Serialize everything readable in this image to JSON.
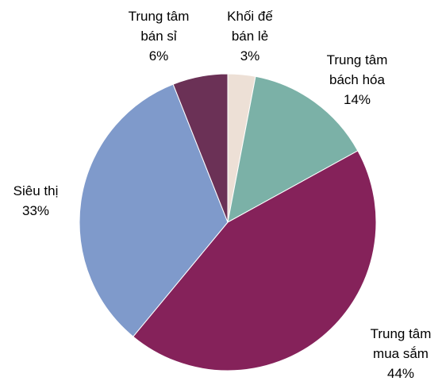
{
  "chart_data": {
    "type": "pie",
    "categories": [
      "Khối đế bán lẻ",
      "Trung tâm bách hóa",
      "Trung tâm mua sắm",
      "Siêu thị",
      "Trung tâm bán sỉ"
    ],
    "values": [
      3,
      14,
      44,
      33,
      6
    ],
    "value_labels": [
      "3%",
      "14%",
      "44%",
      "33%",
      "6%"
    ],
    "colors": [
      "#ede0d6",
      "#7bb1a7",
      "#85225a",
      "#7f9acb",
      "#6b3156"
    ]
  }
}
